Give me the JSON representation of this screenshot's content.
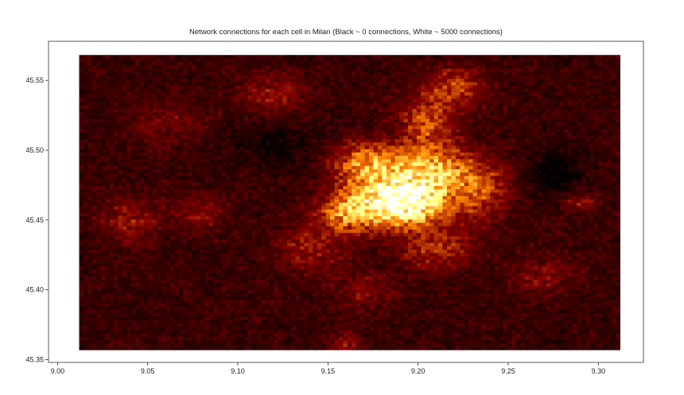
{
  "chart_data": {
    "type": "heatmap",
    "title": "Network connections for each cell in Milan (Black ~ 0 connections, White ~ 5000 connections)",
    "xlabel": "",
    "ylabel": "",
    "xlim": [
      8.995,
      9.325
    ],
    "ylim": [
      45.348,
      45.578
    ],
    "x_ticks": [
      9.0,
      9.05,
      9.1,
      9.15,
      9.2,
      9.25,
      9.3
    ],
    "x_tick_labels": [
      "9.00",
      "9.05",
      "9.10",
      "9.15",
      "9.20",
      "9.25",
      "9.30"
    ],
    "y_ticks": [
      45.35,
      45.4,
      45.45,
      45.5,
      45.55
    ],
    "y_tick_labels": [
      "45.35",
      "45.40",
      "45.45",
      "45.50",
      "45.55"
    ],
    "grid": false,
    "colormap": "afmhot",
    "color_range": [
      0,
      5000
    ],
    "cell_extent": {
      "x": [
        9.012,
        9.312
      ],
      "y": [
        45.357,
        45.568
      ]
    },
    "hotspots": [
      {
        "x": 9.19,
        "y": 45.463,
        "peak": 4800,
        "spread_x": 0.016,
        "spread_y": 0.011
      },
      {
        "x": 9.205,
        "y": 45.485,
        "peak": 2600,
        "spread_x": 0.018,
        "spread_y": 0.012
      },
      {
        "x": 9.17,
        "y": 45.49,
        "peak": 1800,
        "spread_x": 0.012,
        "spread_y": 0.01
      },
      {
        "x": 9.16,
        "y": 45.455,
        "peak": 1700,
        "spread_x": 0.01,
        "spread_y": 0.01
      },
      {
        "x": 9.205,
        "y": 45.52,
        "peak": 1300,
        "spread_x": 0.01,
        "spread_y": 0.012
      },
      {
        "x": 9.22,
        "y": 45.545,
        "peak": 1100,
        "spread_x": 0.012,
        "spread_y": 0.01
      },
      {
        "x": 9.235,
        "y": 45.47,
        "peak": 1100,
        "spread_x": 0.01,
        "spread_y": 0.014
      },
      {
        "x": 9.21,
        "y": 45.43,
        "peak": 1000,
        "spread_x": 0.014,
        "spread_y": 0.01
      },
      {
        "x": 9.14,
        "y": 45.43,
        "peak": 700,
        "spread_x": 0.014,
        "spread_y": 0.012
      },
      {
        "x": 9.04,
        "y": 45.45,
        "peak": 700,
        "spread_x": 0.012,
        "spread_y": 0.012
      },
      {
        "x": 9.12,
        "y": 45.54,
        "peak": 650,
        "spread_x": 0.014,
        "spread_y": 0.01
      },
      {
        "x": 9.29,
        "y": 45.463,
        "peak": 800,
        "spread_x": 0.006,
        "spread_y": 0.004
      },
      {
        "x": 9.08,
        "y": 45.455,
        "peak": 650,
        "spread_x": 0.01,
        "spread_y": 0.008
      },
      {
        "x": 9.17,
        "y": 45.4,
        "peak": 550,
        "spread_x": 0.012,
        "spread_y": 0.01
      },
      {
        "x": 9.27,
        "y": 45.41,
        "peak": 550,
        "spread_x": 0.012,
        "spread_y": 0.01
      },
      {
        "x": 9.16,
        "y": 45.362,
        "peak": 700,
        "spread_x": 0.006,
        "spread_y": 0.005
      },
      {
        "x": 9.06,
        "y": 45.52,
        "peak": 450,
        "spread_x": 0.014,
        "spread_y": 0.012
      }
    ],
    "dark_patches": [
      {
        "x": 9.275,
        "y": 45.485,
        "depth": 400,
        "spread_x": 0.012,
        "spread_y": 0.012
      },
      {
        "x": 9.12,
        "y": 45.505,
        "depth": 300,
        "spread_x": 0.018,
        "spread_y": 0.012
      }
    ]
  }
}
